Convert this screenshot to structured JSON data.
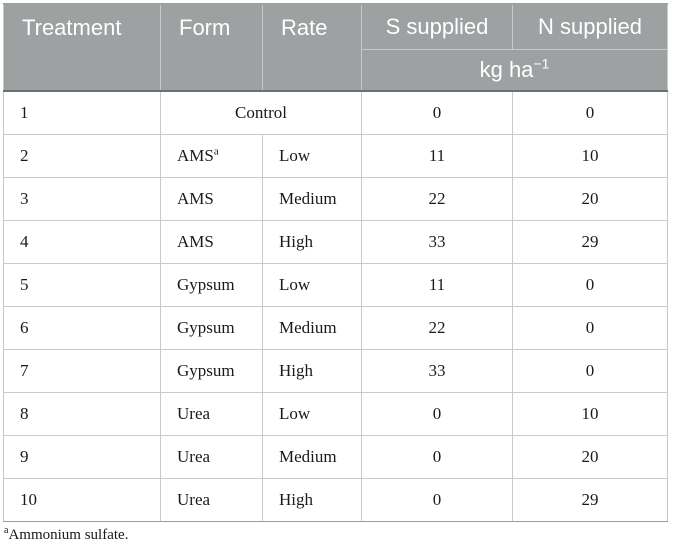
{
  "table": {
    "headers": {
      "treatment": "Treatment",
      "form": "Form",
      "rate": "Rate",
      "s_supplied": "S supplied",
      "n_supplied": "N supplied",
      "unit_base": "kg ha",
      "unit_exp": "−1"
    },
    "control_row": {
      "treatment": "1",
      "label": "Control",
      "s": "0",
      "n": "0"
    },
    "rows": [
      {
        "treatment": "2",
        "form": "AMS",
        "form_mark": "a",
        "rate": "Low",
        "s": "11",
        "n": "10"
      },
      {
        "treatment": "3",
        "form": "AMS",
        "rate": "Medium",
        "s": "22",
        "n": "20"
      },
      {
        "treatment": "4",
        "form": "AMS",
        "rate": "High",
        "s": "33",
        "n": "29"
      },
      {
        "treatment": "5",
        "form": "Gypsum",
        "rate": "Low",
        "s": "11",
        "n": "0"
      },
      {
        "treatment": "6",
        "form": "Gypsum",
        "rate": "Medium",
        "s": "22",
        "n": "0"
      },
      {
        "treatment": "7",
        "form": "Gypsum",
        "rate": "High",
        "s": "33",
        "n": "0"
      },
      {
        "treatment": "8",
        "form": "Urea",
        "rate": "Low",
        "s": "0",
        "n": "10"
      },
      {
        "treatment": "9",
        "form": "Urea",
        "rate": "Medium",
        "s": "0",
        "n": "20"
      },
      {
        "treatment": "10",
        "form": "Urea",
        "rate": "High",
        "s": "0",
        "n": "29"
      }
    ]
  },
  "footnote": {
    "mark": "a",
    "text": "Ammonium sulfate."
  }
}
